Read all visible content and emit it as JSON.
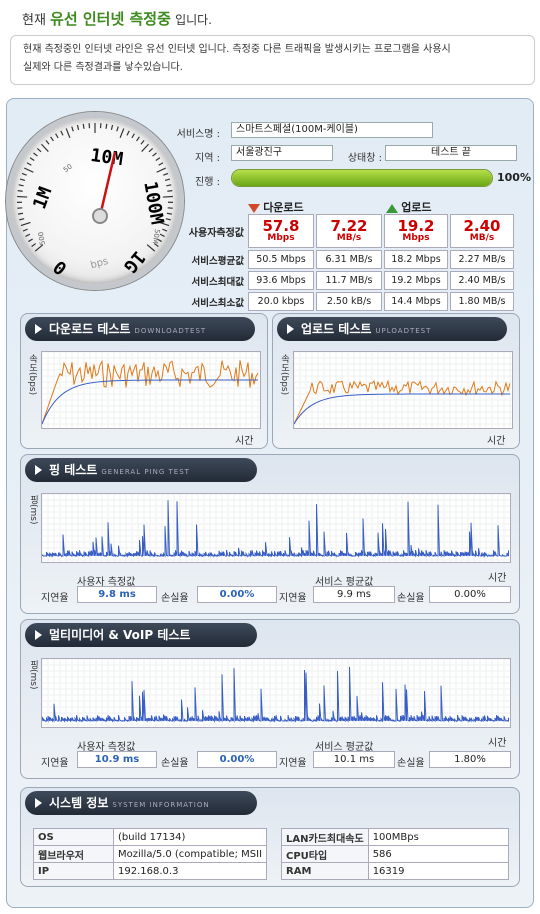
{
  "header": {
    "title_pre": "현재",
    "title_highlight": "유선 인터넷 측정중",
    "title_post": "입니다.",
    "desc_line1": "현재 측정중인 인터넷 라인은 유선 인터넷 입니다. 측정중 다른 트래픽을 발생시키는 프로그램을 사용시",
    "desc_line2": "실제와 다른 측정결과를 낳수있습니다."
  },
  "gauge": {
    "labels": [
      "1M",
      "10M",
      "100M",
      "1G",
      "0",
      "bps",
      "500",
      "50",
      "50M"
    ],
    "needle_value": "10M"
  },
  "info": {
    "service_label": "서비스명 :",
    "service_value": "스마트스페셜(100M-케이블)",
    "region_label": "지역 :",
    "region_value": "서울광진구",
    "status_label": "상태창 :",
    "status_value": "테스트 끝",
    "progress_label": "진행 :",
    "progress_pct": "100%",
    "progress_fraction": 1.0
  },
  "stats": {
    "download_header": "다운로드",
    "upload_header": "업로드",
    "user_label": "사용자측정값",
    "avg_label": "서비스평균값",
    "max_label": "서비스최대값",
    "min_label": "서비스최소값",
    "user": {
      "dl_mbps": "57.8",
      "dl_mbs": "7.22",
      "ul_mbps": "19.2",
      "ul_mbs": "2.40",
      "u1": "Mbps",
      "u2": "MB/s"
    },
    "avg": [
      "50.5 Mbps",
      "6.31 MB/s",
      "18.2 Mbps",
      "2.27 MB/s"
    ],
    "max": [
      "93.6 Mbps",
      "11.7 MB/s",
      "19.2 Mbps",
      "2.40 MB/s"
    ],
    "min": [
      "20.0 kbps",
      "2.50 kB/s",
      "14.4 Mbps",
      "1.80 MB/s"
    ]
  },
  "download_panel": {
    "title": "다운로드 테스트",
    "sub": "DOWNLOADTEST",
    "ylabel": "속도(bps)",
    "xlabel": "시간"
  },
  "upload_panel": {
    "title": "업로드 테스트",
    "sub": "UPLOADTEST",
    "ylabel": "속도(bps)",
    "xlabel": "시간"
  },
  "ping_panel": {
    "title": "핑 테스트",
    "sub": "GENERAL PING TEST",
    "ylabel": "핑(ms)",
    "xlabel": "시간",
    "user_caption": "사용자 측정값",
    "service_caption": "서비스 평균값",
    "latency_label": "지연율",
    "loss_label": "손실율",
    "user_latency": "9.8 ms",
    "user_loss": "0.00%",
    "svc_latency": "9.9 ms",
    "svc_loss": "0.00%"
  },
  "voip_panel": {
    "title": "멀티미디어 & VoIP 테스트",
    "sub": "",
    "ylabel": "핑(ms)",
    "xlabel": "시간",
    "user_caption": "사용자 측정값",
    "service_caption": "서비스 평균값",
    "latency_label": "지연율",
    "loss_label": "손실율",
    "user_latency": "10.9 ms",
    "user_loss": "0.00%",
    "svc_latency": "10.1 ms",
    "svc_loss": "1.80%"
  },
  "system_panel": {
    "title": "시스템 정보",
    "sub": "SYSTEM INFORMATION",
    "os_label": "OS",
    "os_value": "(build 17134)",
    "browser_label": "웹브라우저",
    "browser_value": "Mozilla/5.0 (compatible; MSII",
    "ip_label": "IP",
    "ip_value": "192.168.0.3",
    "lan_label": "LAN카드최대속도",
    "lan_value": "100MBps",
    "cpu_label": "CPU타입",
    "cpu_value": "586",
    "ram_label": "RAM",
    "ram_value": "16319"
  },
  "colors": {
    "orange": "#e07a1a",
    "blue": "#3a5fc4",
    "green": "#3d8b1e",
    "red": "#cc0000"
  }
}
